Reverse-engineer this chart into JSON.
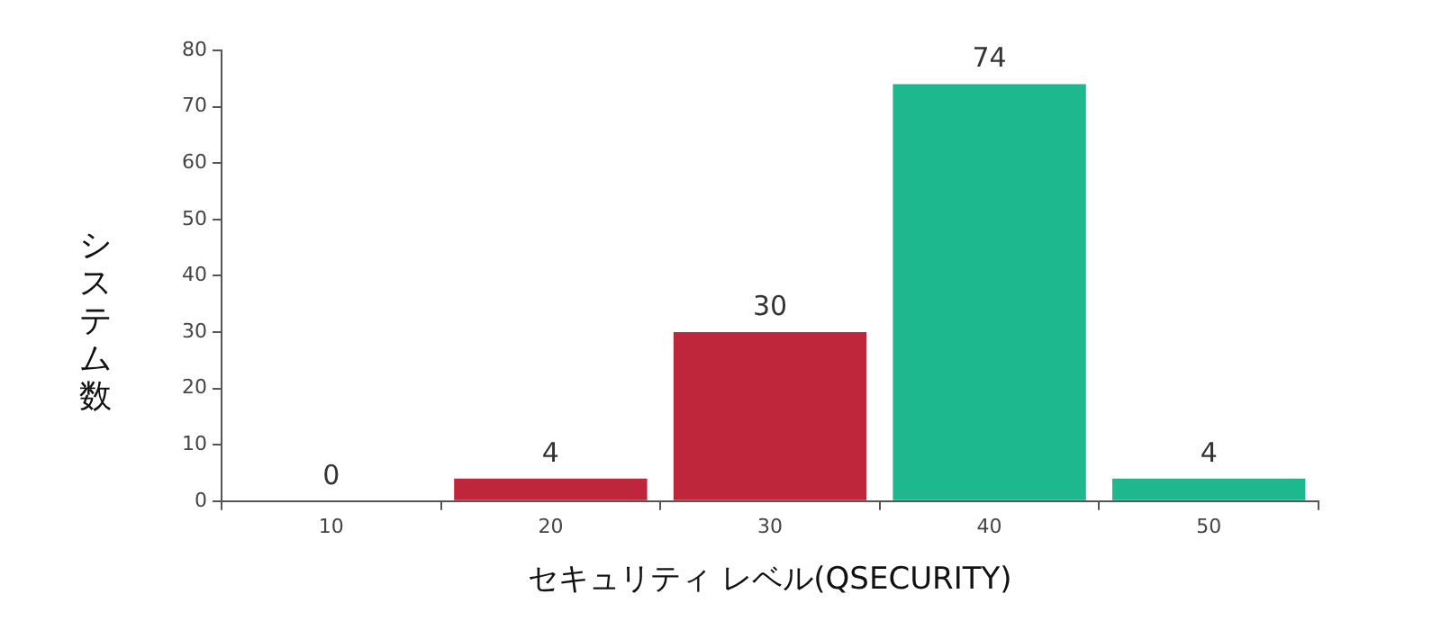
{
  "chart_data": {
    "type": "bar",
    "xlabel": "セキュリティ レベル(QSECURITY)",
    "ylabel": "システム数",
    "categories": [
      "10",
      "20",
      "30",
      "40",
      "50"
    ],
    "values": [
      0,
      4,
      30,
      74,
      4
    ],
    "colors": [
      "#c0263b",
      "#c0263b",
      "#c0263b",
      "#1db88e",
      "#1db88e"
    ],
    "ylim": [
      0,
      80
    ],
    "yticks": [
      0,
      10,
      20,
      30,
      40,
      50,
      60,
      70,
      80
    ],
    "grid": false,
    "legend": false,
    "data_labels": true
  }
}
